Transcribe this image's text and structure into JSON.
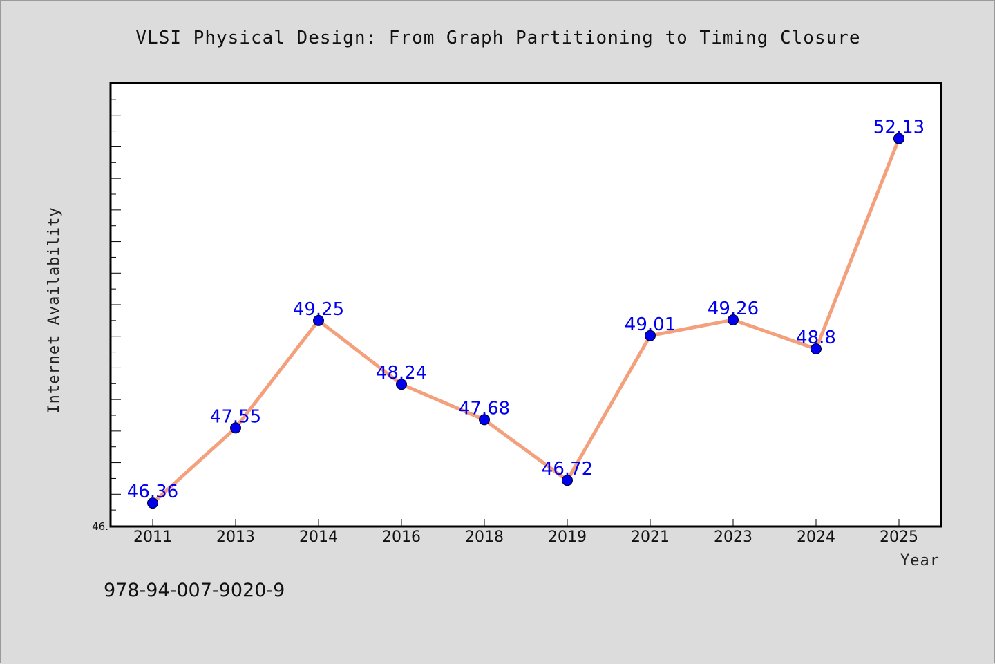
{
  "chart_data": {
    "type": "line",
    "title": "VLSI Physical Design: From Graph Partitioning to Timing Closure",
    "xlabel": "Year",
    "ylabel": "Internet Availability",
    "categories": [
      "2011",
      "2013",
      "2014",
      "2016",
      "2018",
      "2019",
      "2021",
      "2023",
      "2024",
      "2025"
    ],
    "series": [
      {
        "values": [
          46.36,
          47.55,
          49.25,
          48.24,
          47.68,
          46.72,
          49.01,
          49.26,
          48.8,
          52.13
        ],
        "data_labels": [
          "46.36",
          "47.55",
          "49.25",
          "48.24",
          "47.68",
          "46.72",
          "49.01",
          "49.26",
          "48.8",
          "52.13"
        ]
      }
    ],
    "ylim": [
      46.0,
      53.0
    ],
    "ytick_labels": [
      "46."
    ],
    "grid": false,
    "line_color": "#f4a07c",
    "marker_color": "#0000ee",
    "label_color": "#0000ee"
  },
  "footer": {
    "isbn": "978-94-007-9020-9"
  }
}
